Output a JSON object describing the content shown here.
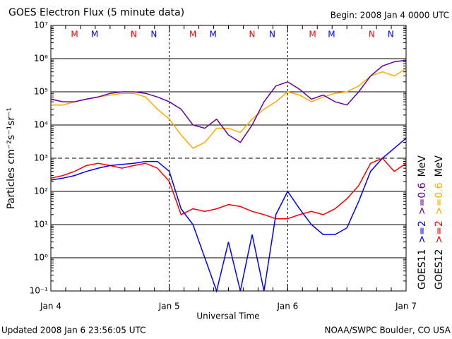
{
  "chart_data": {
    "type": "line",
    "title": "GOES Electron Flux (5 minute data)",
    "subtitle": "Begin: 2008 Jan 4 0000 UTC",
    "xlabel": "Universal Time",
    "ylabel": "Particles cm⁻²s⁻¹sr⁻¹",
    "footer_left": "Updated 2008 Jan  6 23:56:05 UTC",
    "footer_right": "NOAA/SWPC Boulder, CO USA",
    "log_y": true,
    "grid": true,
    "ylim": [
      0.1,
      10000000
    ],
    "yticks": [
      {
        "value": 0.1,
        "label": "10⁻¹"
      },
      {
        "value": 1,
        "label": "10⁰"
      },
      {
        "value": 10,
        "label": "10¹"
      },
      {
        "value": 100,
        "label": "10²"
      },
      {
        "value": 1000,
        "label": "10³"
      },
      {
        "value": 10000,
        "label": "10⁴"
      },
      {
        "value": 100000,
        "label": "10⁵"
      },
      {
        "value": 1000000,
        "label": "10⁶"
      },
      {
        "value": 10000000,
        "label": "10⁷"
      }
    ],
    "dashed_ytick": 1000,
    "xlim": [
      0,
      3
    ],
    "xticks": [
      {
        "value": 0,
        "label": "Jan 4"
      },
      {
        "value": 1,
        "label": "Jan 5"
      },
      {
        "value": 2,
        "label": "Jan 6"
      },
      {
        "value": 3,
        "label": "Jan 7"
      }
    ],
    "x": [
      0,
      0.1,
      0.2,
      0.3,
      0.4,
      0.5,
      0.6,
      0.7,
      0.8,
      0.9,
      1,
      1.1,
      1.2,
      1.3,
      1.4,
      1.5,
      1.6,
      1.7,
      1.8,
      1.9,
      2,
      2.1,
      2.2,
      2.3,
      2.4,
      2.5,
      2.6,
      2.7,
      2.8,
      2.9,
      3
    ],
    "series": [
      {
        "color": "#0000ff",
        "values": [
          220,
          250,
          300,
          400,
          500,
          600,
          650,
          700,
          800,
          800,
          400,
          30,
          10,
          1,
          0.1,
          3,
          0.1,
          5,
          0.1,
          20,
          100,
          30,
          10,
          5,
          5,
          8,
          50,
          400,
          1000,
          2000,
          4000
        ]
      },
      {
        "color": "#ff0000",
        "values": [
          250,
          300,
          400,
          600,
          700,
          600,
          500,
          600,
          700,
          500,
          200,
          20,
          30,
          25,
          30,
          40,
          35,
          25,
          20,
          15,
          15,
          20,
          25,
          20,
          30,
          60,
          150,
          700,
          1000,
          400,
          700
        ]
      },
      {
        "color": "#660099",
        "values": [
          60000,
          50000,
          50000,
          60000,
          70000,
          90000,
          100000,
          100000,
          90000,
          70000,
          50000,
          30000,
          10000,
          8000,
          15000,
          5000,
          3000,
          10000,
          50000,
          150000,
          200000,
          120000,
          60000,
          80000,
          50000,
          40000,
          100000,
          300000,
          600000,
          800000,
          900000
        ]
      },
      {
        "color": "#ffaa00",
        "values": [
          40000,
          40000,
          50000,
          60000,
          70000,
          80000,
          90000,
          90000,
          70000,
          30000,
          15000,
          5000,
          2000,
          3000,
          8000,
          8000,
          6000,
          15000,
          30000,
          50000,
          100000,
          80000,
          50000,
          70000,
          90000,
          100000,
          150000,
          300000,
          400000,
          300000,
          500000
        ]
      }
    ],
    "legend": [
      {
        "label": "GOES11",
        "parts": [
          ">=2",
          ">=0.6"
        ],
        "unit": "MeV"
      },
      {
        "label": "GOES12",
        "parts": [
          ">=2",
          ">=0.6"
        ],
        "unit": "MeV"
      }
    ],
    "markers": [
      {
        "label": "M",
        "x": 0.2,
        "color": "#ff0000"
      },
      {
        "label": "M",
        "x": 0.37,
        "color": "#0000ff"
      },
      {
        "label": "N",
        "x": 0.7,
        "color": "#ff0000"
      },
      {
        "label": "N",
        "x": 0.87,
        "color": "#0000ff"
      },
      {
        "label": "M",
        "x": 1.2,
        "color": "#ff0000"
      },
      {
        "label": "M",
        "x": 1.37,
        "color": "#0000ff"
      },
      {
        "label": "N",
        "x": 1.7,
        "color": "#ff0000"
      },
      {
        "label": "N",
        "x": 1.87,
        "color": "#0000ff"
      },
      {
        "label": "M",
        "x": 2.21,
        "color": "#ff0000"
      },
      {
        "label": "M",
        "x": 2.37,
        "color": "#0000ff"
      },
      {
        "label": "N",
        "x": 2.71,
        "color": "#ff0000"
      },
      {
        "label": "N",
        "x": 2.87,
        "color": "#0000ff"
      }
    ]
  }
}
